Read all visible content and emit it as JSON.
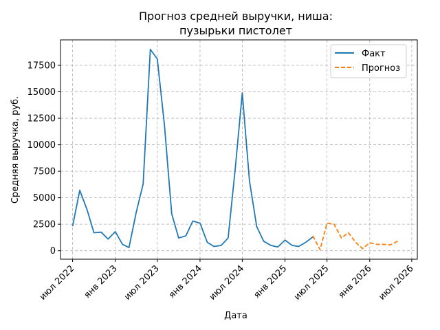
{
  "chart_data": {
    "type": "line",
    "title_line1": "Прогноз средней выручки, ниша:",
    "title_line2": "пузырьки пистолет",
    "xlabel": "Дата",
    "ylabel": "Средняя выручка, руб.",
    "grid": true,
    "legend_position": "top-right",
    "ylim": [
      -800,
      19900
    ],
    "xlim": [
      "2022-05-10",
      "2026-07-25"
    ],
    "x_ticks": [
      {
        "date": "2022-07-01",
        "label": "июл 2022"
      },
      {
        "date": "2023-01-01",
        "label": "янв 2023"
      },
      {
        "date": "2023-07-01",
        "label": "июл 2023"
      },
      {
        "date": "2024-01-01",
        "label": "янв 2024"
      },
      {
        "date": "2024-07-01",
        "label": "июл 2024"
      },
      {
        "date": "2025-01-01",
        "label": "янв 2025"
      },
      {
        "date": "2025-07-01",
        "label": "июл 2025"
      },
      {
        "date": "2026-01-01",
        "label": "янв 2026"
      },
      {
        "date": "2026-07-01",
        "label": "июл 2026"
      }
    ],
    "y_ticks": [
      {
        "value": 0,
        "label": "0"
      },
      {
        "value": 2500,
        "label": "2500"
      },
      {
        "value": 5000,
        "label": "5000"
      },
      {
        "value": 7500,
        "label": "7500"
      },
      {
        "value": 10000,
        "label": "10000"
      },
      {
        "value": 12500,
        "label": "12500"
      },
      {
        "value": 15000,
        "label": "15000"
      },
      {
        "value": 17500,
        "label": "17500"
      }
    ],
    "series": [
      {
        "name": "Факт",
        "color": "#1f77b4",
        "style": "solid",
        "x": [
          "2022-07-01",
          "2022-08-01",
          "2022-09-01",
          "2022-10-01",
          "2022-11-01",
          "2022-12-01",
          "2023-01-01",
          "2023-02-01",
          "2023-03-01",
          "2023-04-01",
          "2023-05-01",
          "2023-06-01",
          "2023-07-01",
          "2023-08-01",
          "2023-09-01",
          "2023-10-01",
          "2023-11-01",
          "2023-12-01",
          "2024-01-01",
          "2024-02-01",
          "2024-03-01",
          "2024-04-01",
          "2024-05-01",
          "2024-06-01",
          "2024-07-01",
          "2024-08-01",
          "2024-09-01",
          "2024-10-01",
          "2024-11-01",
          "2024-12-01",
          "2025-01-01",
          "2025-02-01",
          "2025-03-01",
          "2025-04-01",
          "2025-05-01"
        ],
        "y": [
          2300,
          5700,
          3900,
          1700,
          1750,
          1100,
          1800,
          600,
          300,
          3600,
          6300,
          19000,
          18100,
          11800,
          3500,
          1200,
          1400,
          2800,
          2600,
          800,
          400,
          500,
          1200,
          7800,
          14900,
          6600,
          2300,
          900,
          500,
          350,
          1000,
          500,
          400,
          800,
          1300
        ]
      },
      {
        "name": "Прогноз",
        "color": "#ff7f0e",
        "style": "dashed",
        "x": [
          "2025-05-01",
          "2025-06-01",
          "2025-07-01",
          "2025-08-01",
          "2025-09-01",
          "2025-10-01",
          "2025-11-01",
          "2025-12-01",
          "2026-01-01",
          "2026-02-01",
          "2026-03-01",
          "2026-04-01",
          "2026-05-01"
        ],
        "y": [
          1400,
          100,
          2600,
          2500,
          1200,
          1700,
          800,
          200,
          750,
          600,
          600,
          550,
          900
        ]
      }
    ]
  }
}
